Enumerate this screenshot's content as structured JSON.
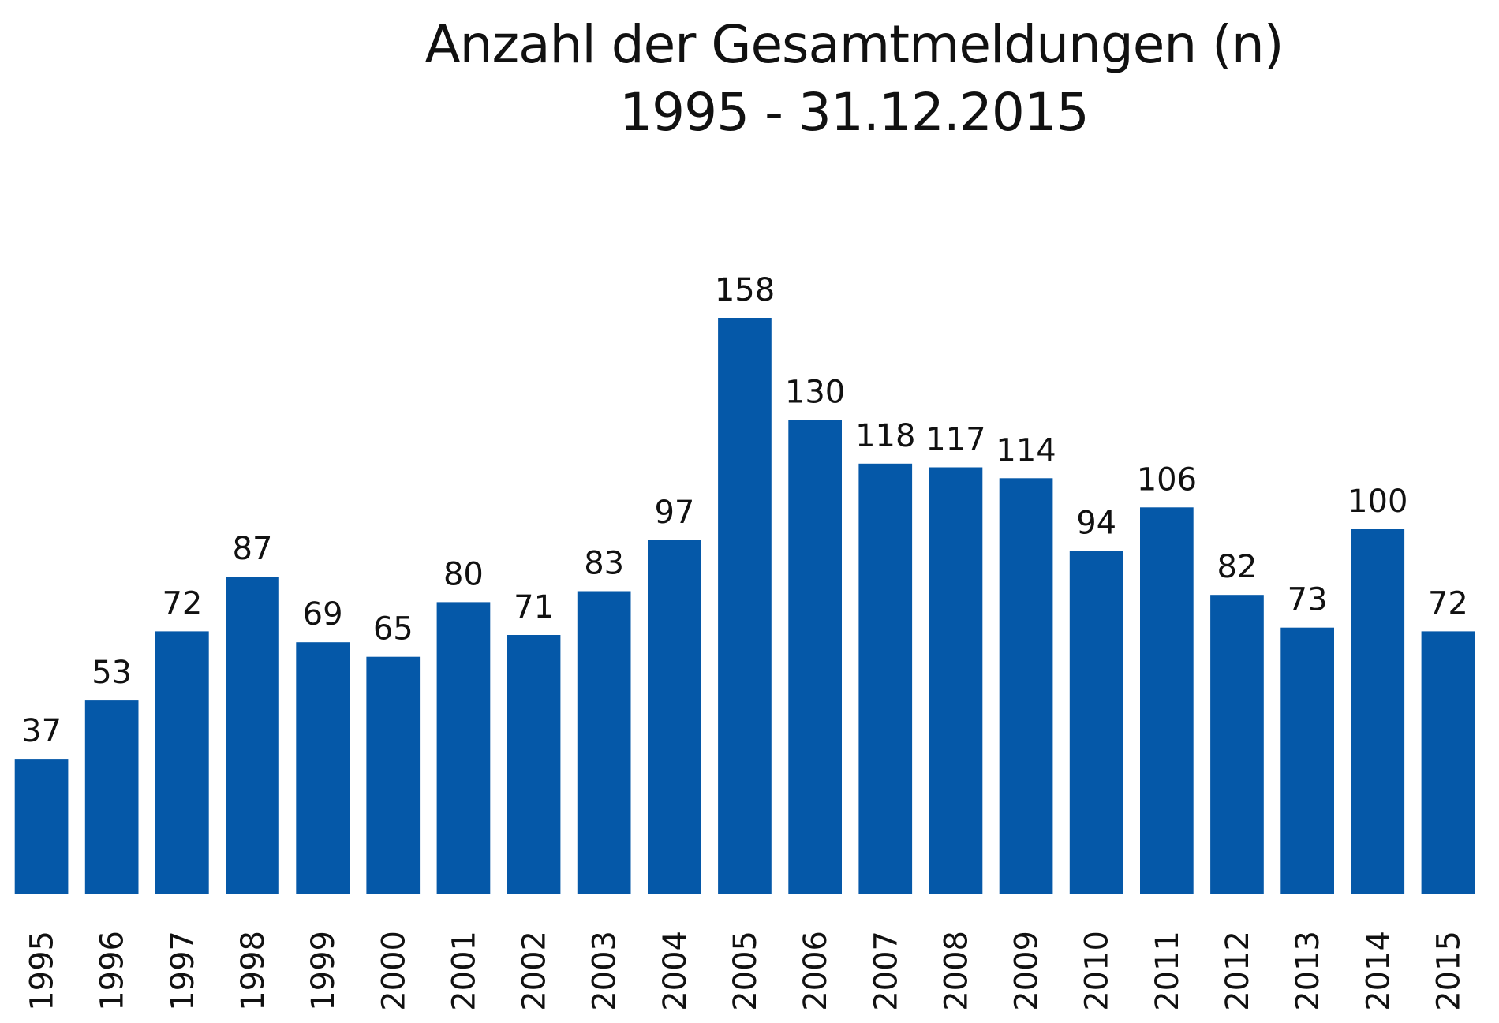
{
  "chart_data": {
    "type": "bar",
    "title": "Anzahl der Gesamtmeldungen (n)",
    "subtitle": "1995 - 31.12.2015",
    "xlabel": "",
    "ylabel": "",
    "categories": [
      "1995",
      "1996",
      "1997",
      "1998",
      "1999",
      "2000",
      "2001",
      "2002",
      "2003",
      "2004",
      "2005",
      "2006",
      "2007",
      "2008",
      "2009",
      "2010",
      "2011",
      "2012",
      "2013",
      "2014",
      "2015"
    ],
    "values": [
      37,
      53,
      72,
      87,
      69,
      65,
      80,
      71,
      83,
      97,
      158,
      130,
      118,
      117,
      114,
      94,
      106,
      82,
      73,
      100,
      72
    ],
    "ylim": [
      0,
      160
    ],
    "grid": false,
    "data_labels": true,
    "tick_label_orientation": "vertical",
    "bar_color": "#0558a8"
  }
}
